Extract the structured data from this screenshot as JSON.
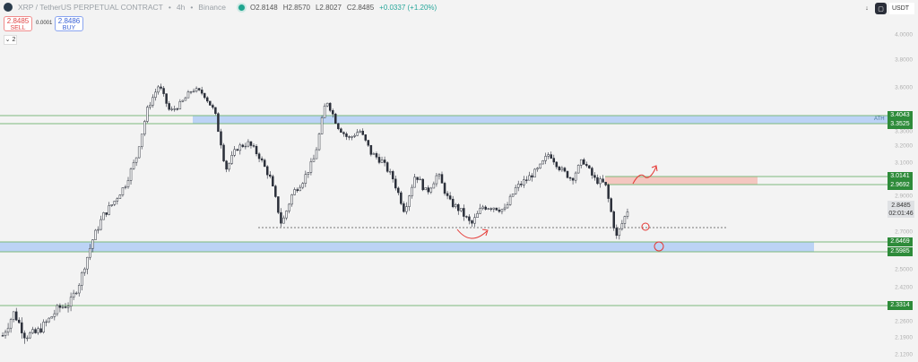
{
  "header": {
    "symbol": "XRP / TetherUS PERPETUAL CONTRACT",
    "interval": "4h",
    "exchange": "Binance",
    "open": "O2.8148",
    "high": "H2.8570",
    "low": "L2.8027",
    "close": "C2.8485",
    "change": "+0.0337 (+1.20%)"
  },
  "trade": {
    "sell_price": "2.8485",
    "sell_label": "SELL",
    "spread": "0.0001",
    "buy_price": "2.8486",
    "buy_label": "BUY"
  },
  "indicators_toggle": "2",
  "toolbar": {
    "currency": "USDT",
    "download_icon": "arrow-down-icon",
    "screen_icon": "fullscreen-icon"
  },
  "axis": {
    "ticks": [
      "4.0000",
      "3.8000",
      "3.6000",
      "3.3000",
      "3.2000",
      "3.1000",
      "2.9000",
      "2.7000",
      "2.5000",
      "2.4200",
      "2.2600",
      "2.1900",
      "2.1200"
    ]
  },
  "levels": {
    "l1": "3.4043",
    "l2": "3.3525",
    "l3": "3.0141",
    "l4": "2.9692",
    "l5": "2.6469",
    "l6": "2.5985",
    "l7": "2.3314",
    "ath_label": "ATH"
  },
  "current": {
    "price": "2.8485",
    "countdown": "02:01:46"
  },
  "colors": {
    "bull": "#26a69a",
    "level": "#2e8b3a",
    "zone_blue": "#bcd3f5",
    "zone_red": "#f4c7c0",
    "annotation": "#e53935"
  },
  "chart_data": {
    "type": "candlestick",
    "approx_close_path": [
      2.2,
      2.3,
      2.2,
      2.21,
      2.26,
      2.32,
      2.34,
      2.46,
      2.65,
      2.79,
      2.87,
      2.97,
      3.14,
      3.46,
      3.62,
      3.43,
      3.49,
      3.59,
      3.56,
      3.43,
      3.06,
      3.19,
      3.22,
      3.14,
      3.0,
      2.74,
      2.92,
      3.0,
      3.14,
      3.52,
      3.34,
      3.25,
      3.31,
      3.16,
      3.11,
      3.0,
      2.82,
      3.03,
      2.92,
      3.03,
      2.87,
      2.82,
      2.74,
      2.84,
      2.84,
      2.82,
      2.95,
      3.0,
      3.06,
      3.16,
      3.06,
      3.0,
      3.12,
      3.0,
      2.97,
      2.67,
      2.82
    ]
  }
}
